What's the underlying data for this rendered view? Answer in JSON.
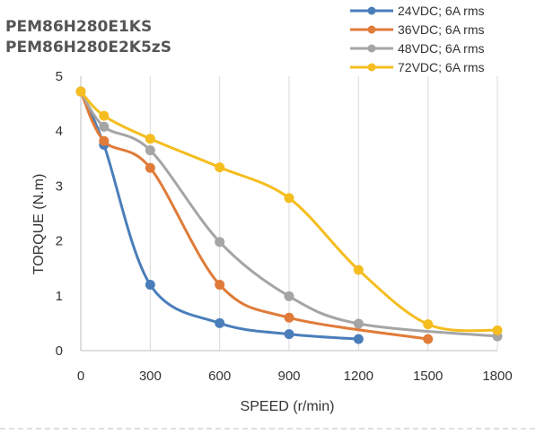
{
  "chart_data": {
    "type": "line",
    "title": "PEM86H280E1KS",
    "subtitle": "PEM86H280E2K5zS",
    "xlabel": "SPEED (r/min)",
    "ylabel": "TORQUE (N.m)",
    "xlim": [
      0,
      1800
    ],
    "ylim": [
      0,
      5
    ],
    "x_ticks": [
      0,
      300,
      600,
      900,
      1200,
      1500,
      1800
    ],
    "y_ticks": [
      0,
      1,
      2,
      3,
      4,
      5
    ],
    "grid": "vertical",
    "legend_position": "top-right",
    "series": [
      {
        "name": "24VDC; 6A rms",
        "color": "#4a7ebb",
        "x": [
          0,
          100,
          300,
          600,
          900,
          1200
        ],
        "y": [
          4.72,
          3.75,
          1.2,
          0.5,
          0.3,
          0.21
        ]
      },
      {
        "name": "36VDC; 6A rms",
        "color": "#e07b39",
        "x": [
          0,
          100,
          300,
          600,
          900,
          1500
        ],
        "y": [
          4.72,
          3.82,
          3.33,
          1.2,
          0.6,
          0.21
        ]
      },
      {
        "name": "48VDC; 6A rms",
        "color": "#a5a5a5",
        "x": [
          0,
          100,
          300,
          600,
          900,
          1200,
          1800
        ],
        "y": [
          4.72,
          4.08,
          3.65,
          1.98,
          0.99,
          0.49,
          0.26
        ]
      },
      {
        "name": "72VDC; 6A rms",
        "color": "#f5bd1f",
        "x": [
          0,
          100,
          300,
          600,
          900,
          1200,
          1500,
          1800
        ],
        "y": [
          4.72,
          4.28,
          3.86,
          3.34,
          2.78,
          1.47,
          0.48,
          0.37
        ]
      }
    ]
  }
}
